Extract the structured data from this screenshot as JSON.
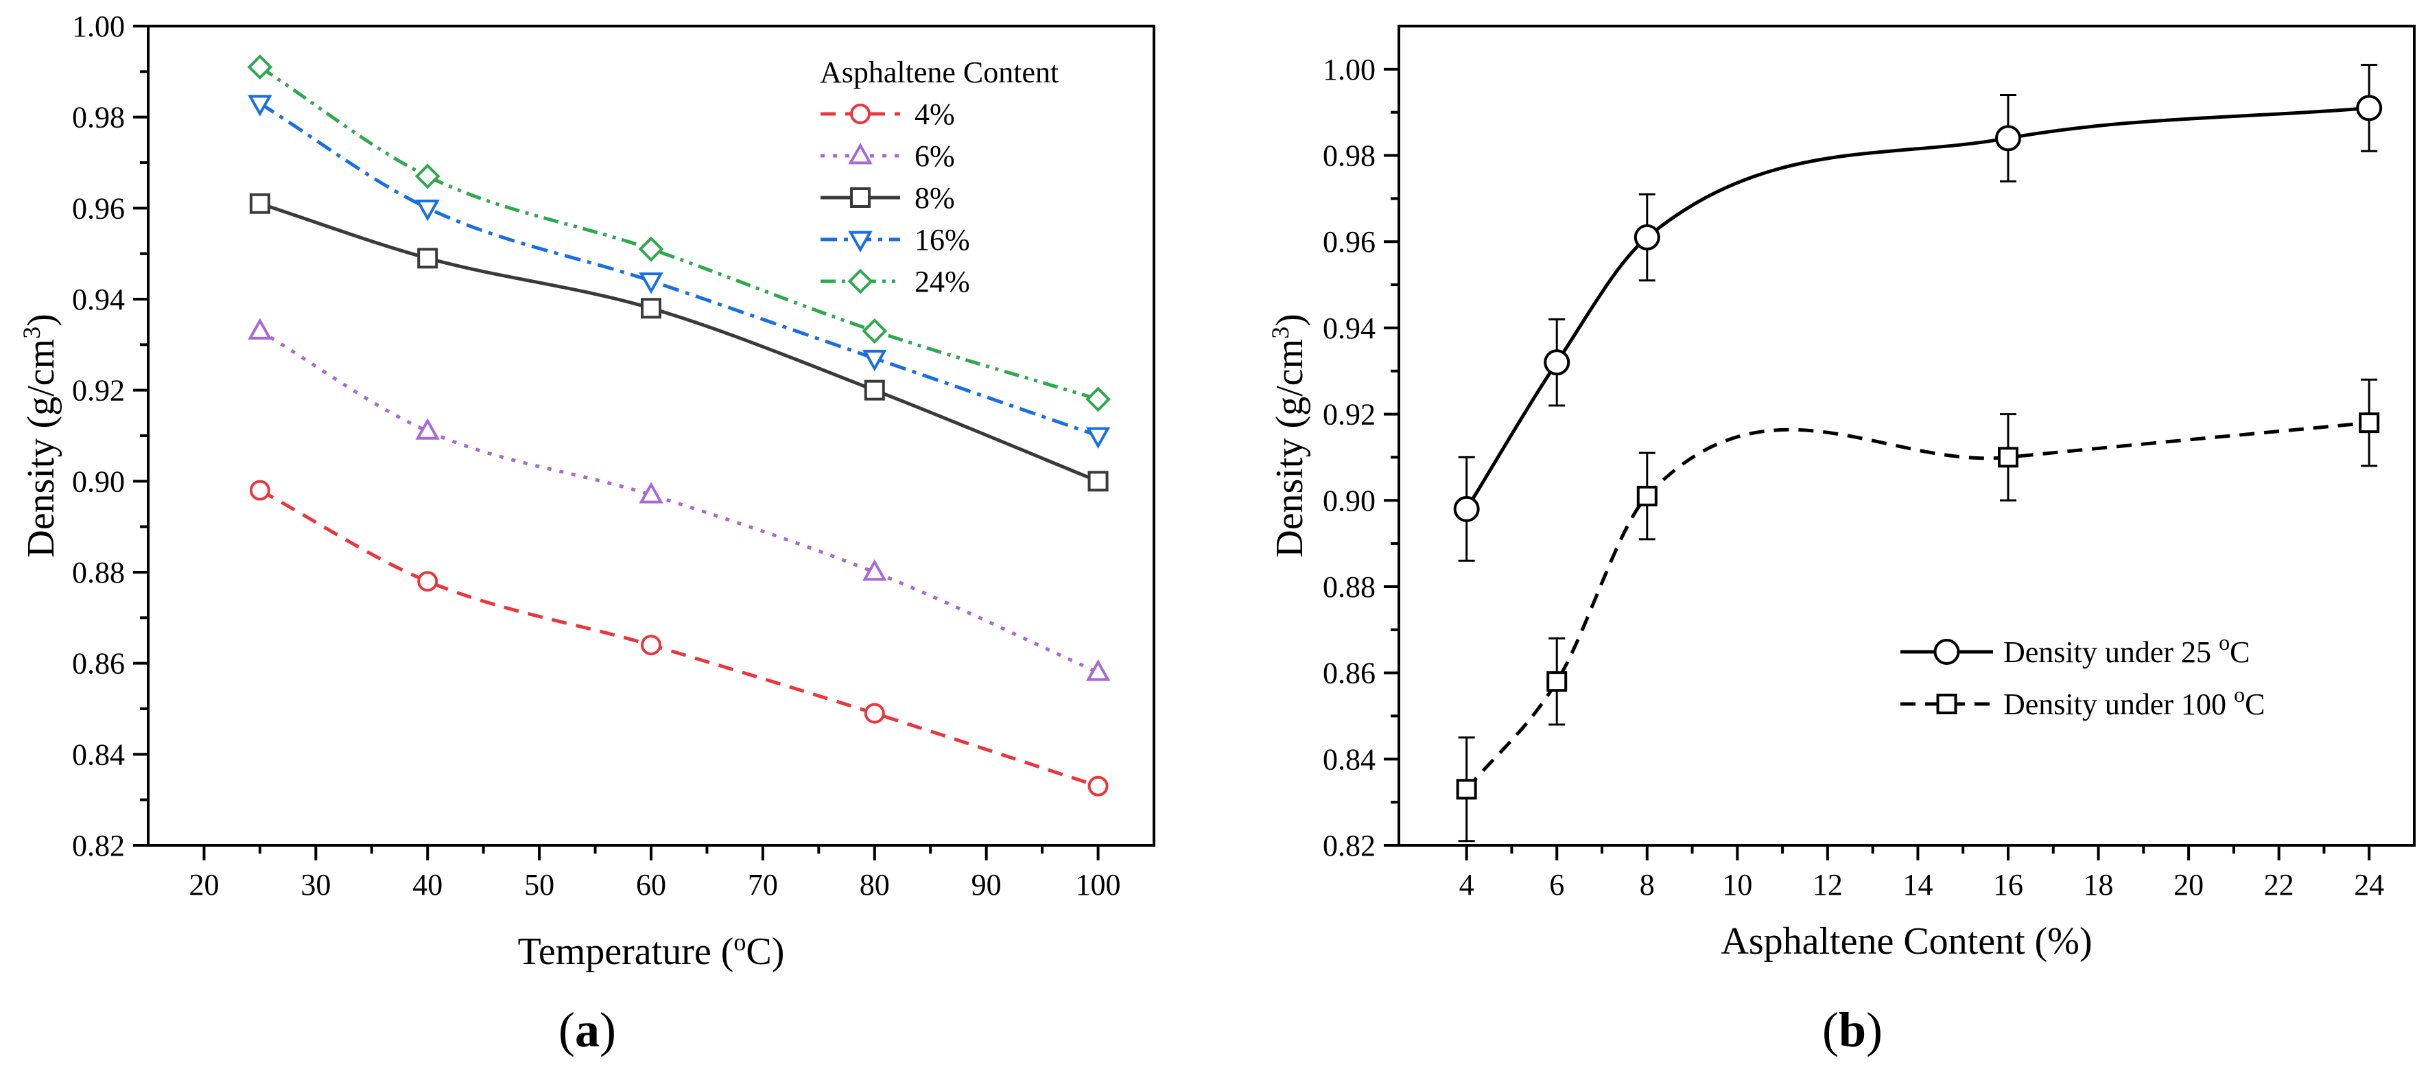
{
  "chart_data": [
    {
      "type": "line",
      "panel_label": "a",
      "xlabel": "Temperature",
      "xlabel_unit_pre": " (",
      "xlabel_unit_sup": "o",
      "xlabel_unit_post": "C)",
      "ylabel": "Density",
      "ylabel_unit_pre": " (g/cm",
      "ylabel_unit_sup": "3",
      "ylabel_unit_post": ")",
      "xlim": [
        15,
        105
      ],
      "ylim": [
        0.82,
        1.0
      ],
      "xticks": [
        "20",
        "30",
        "40",
        "50",
        "60",
        "70",
        "80",
        "90",
        "100"
      ],
      "yticks": [
        "0.82",
        "0.84",
        "0.86",
        "0.88",
        "0.90",
        "0.92",
        "0.94",
        "0.96",
        "0.98",
        "1.00"
      ],
      "legend_title": "Asphaltene Content",
      "legend_position": "top-right",
      "x": [
        25,
        40,
        60,
        80,
        100
      ],
      "series": [
        {
          "name": "4%",
          "values": [
            0.898,
            0.878,
            0.864,
            0.849,
            0.833
          ],
          "color": "#e8383d",
          "marker": "circle",
          "dash": "dashed"
        },
        {
          "name": "6%",
          "values": [
            0.933,
            0.911,
            0.897,
            0.88,
            0.858
          ],
          "color": "#a768d8",
          "marker": "triangle-up",
          "dash": "dotted"
        },
        {
          "name": "8%",
          "values": [
            0.961,
            0.949,
            0.938,
            0.92,
            0.9
          ],
          "color": "#3a3a3a",
          "marker": "square",
          "dash": "solid"
        },
        {
          "name": "16%",
          "values": [
            0.983,
            0.96,
            0.944,
            0.927,
            0.91
          ],
          "color": "#1a6fe0",
          "marker": "triangle-down",
          "dash": "dashdot"
        },
        {
          "name": "24%",
          "values": [
            0.991,
            0.967,
            0.951,
            0.933,
            0.918
          ],
          "color": "#2fa84f",
          "marker": "diamond",
          "dash": "dashdotdot"
        }
      ]
    },
    {
      "type": "line",
      "panel_label": "b",
      "xlabel": "Asphaltene Content (%)",
      "ylabel": "Density",
      "ylabel_unit_pre": " (g/cm",
      "ylabel_unit_sup": "3",
      "ylabel_unit_post": ")",
      "xlim": [
        2.5,
        25
      ],
      "ylim": [
        0.82,
        1.01
      ],
      "xticks": [
        "4",
        "6",
        "8",
        "10",
        "12",
        "14",
        "16",
        "18",
        "20",
        "22",
        "24"
      ],
      "yticks": [
        "0.82",
        "0.84",
        "0.86",
        "0.88",
        "0.90",
        "0.92",
        "0.94",
        "0.96",
        "0.98",
        "1.00"
      ],
      "legend_position": "bottom-right",
      "x": [
        4,
        6,
        8,
        16,
        24
      ],
      "series": [
        {
          "name": "Density under 25 ",
          "name_sup": "o",
          "name_post": "C",
          "values": [
            0.898,
            0.932,
            0.961,
            0.984,
            0.991
          ],
          "errors": [
            0.012,
            0.01,
            0.01,
            0.01,
            0.01
          ],
          "color": "#000000",
          "marker": "circle",
          "dash": "solid"
        },
        {
          "name": "Density under 100 ",
          "name_sup": "o",
          "name_post": "C",
          "values": [
            0.833,
            0.858,
            0.901,
            0.91,
            0.918
          ],
          "errors": [
            0.012,
            0.01,
            0.01,
            0.01,
            0.01
          ],
          "color": "#000000",
          "marker": "square",
          "dash": "dashed"
        }
      ]
    }
  ]
}
